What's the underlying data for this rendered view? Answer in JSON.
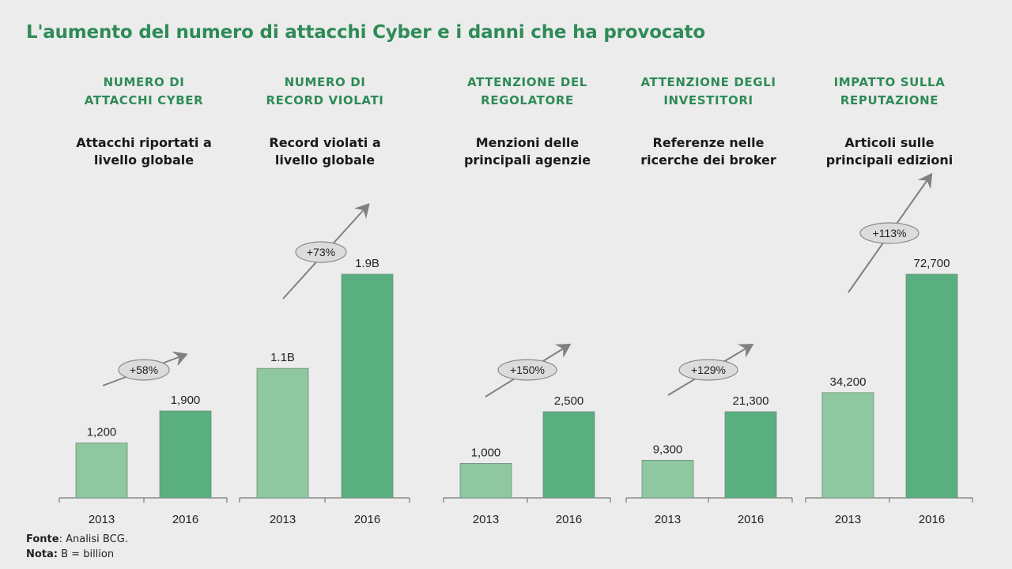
{
  "title": "L'aumento del numero di attacchi Cyber e i danni che ha provocato",
  "footer": {
    "source_label": "Fonte",
    "source_text": ": Analisi BCG.",
    "note_label": "Nota:",
    "note_text": " B = billion"
  },
  "colors": {
    "title": "#2e8b57",
    "bar_2013": "#8fc7a0",
    "bar_2016": "#5aaf80",
    "arrow": "#808080"
  },
  "chart_data": [
    {
      "type": "bar",
      "heading": [
        "NUMERO DI",
        "ATTACCHI CYBER"
      ],
      "subtitle": [
        "Attacchi riportati a",
        "livello globale"
      ],
      "categories": [
        "2013",
        "2016"
      ],
      "values": [
        1200,
        1900
      ],
      "value_labels": [
        "1,200",
        "1,900"
      ],
      "change_label": "+58%"
    },
    {
      "type": "bar",
      "heading": [
        "NUMERO DI",
        "RECORD VIOLATI"
      ],
      "subtitle": [
        "Record violati a",
        "livello globale"
      ],
      "categories": [
        "2013",
        "2016"
      ],
      "values": [
        1.1,
        1.9
      ],
      "unit": "B",
      "value_labels": [
        "1.1B",
        "1.9B"
      ],
      "change_label": "+73%"
    },
    {
      "type": "bar",
      "heading": [
        "ATTENZIONE DEL",
        "REGOLATORE"
      ],
      "subtitle": [
        "Menzioni delle",
        "principali agenzie"
      ],
      "categories": [
        "2013",
        "2016"
      ],
      "values": [
        1000,
        2500
      ],
      "value_labels": [
        "1,000",
        "2,500"
      ],
      "change_label": "+150%"
    },
    {
      "type": "bar",
      "heading": [
        "ATTENZIONE DEGLI",
        "INVESTITORI"
      ],
      "subtitle": [
        "Referenze nelle",
        "ricerche dei broker"
      ],
      "categories": [
        "2013",
        "2016"
      ],
      "values": [
        9300,
        21300
      ],
      "value_labels": [
        "9,300",
        "21,300"
      ],
      "change_label": "+129%"
    },
    {
      "type": "bar",
      "heading": [
        "IMPATTO SULLA",
        "REPUTAZIONE"
      ],
      "subtitle": [
        "Articoli sulle",
        "principali edizioni"
      ],
      "categories": [
        "2013",
        "2016"
      ],
      "values": [
        34200,
        72700
      ],
      "value_labels": [
        "34,200",
        "72,700"
      ],
      "change_label": "+113%"
    }
  ]
}
